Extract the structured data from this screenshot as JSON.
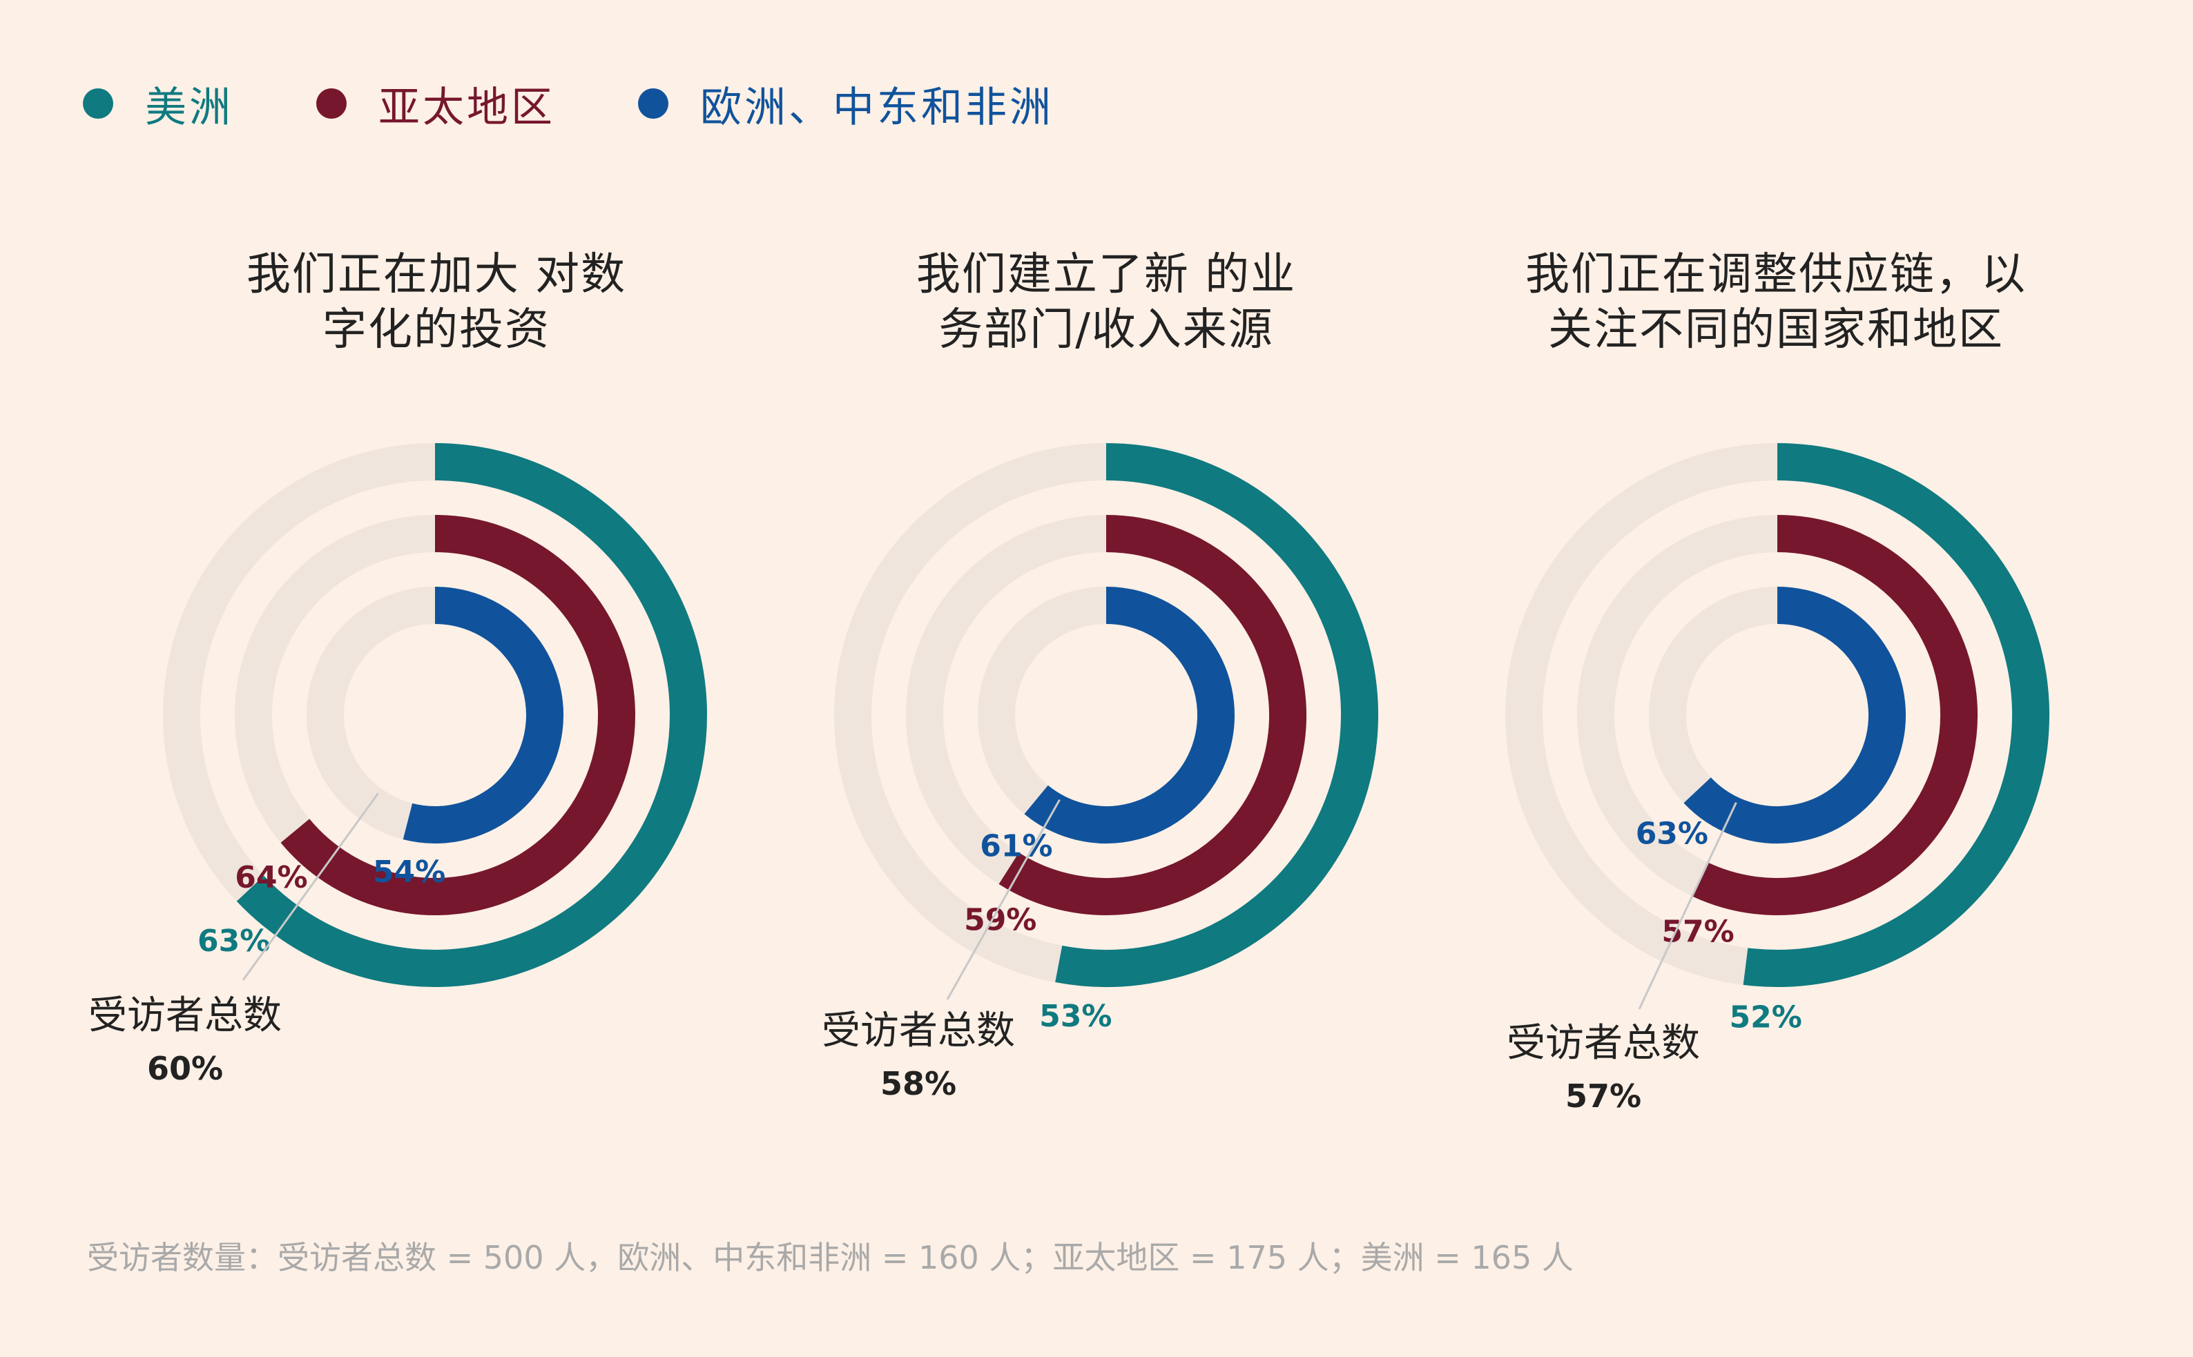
{
  "legend": [
    {
      "label": "美洲",
      "color": "#0f7a80"
    },
    {
      "label": "亚太地区",
      "color": "#76172e"
    },
    {
      "label": "欧洲、中东和非洲",
      "color": "#10539c"
    }
  ],
  "colors": {
    "americas": "#0f7a80",
    "apac": "#76172e",
    "emea": "#10539c",
    "track": "#efe5dc",
    "total_text": "#222222",
    "leader_line": "#c8c8c8"
  },
  "total_label": "受访者总数",
  "chart_data": [
    {
      "type": "radial-bar",
      "title": "我们正在加大 对数\n字化的投资",
      "series": [
        {
          "name": "美洲",
          "value": 63
        },
        {
          "name": "亚太地区",
          "value": 64
        },
        {
          "name": "欧洲、中东和非洲",
          "value": 54
        }
      ],
      "total": 60
    },
    {
      "type": "radial-bar",
      "title": "我们建立了新 的业\n务部门/收入来源",
      "series": [
        {
          "name": "美洲",
          "value": 53
        },
        {
          "name": "亚太地区",
          "value": 59
        },
        {
          "name": "欧洲、中东和非洲",
          "value": 61
        }
      ],
      "total": 58
    },
    {
      "type": "radial-bar",
      "title": "我们正在调整供应链，以\n关注不同的国家和地区",
      "series": [
        {
          "name": "美洲",
          "value": 52
        },
        {
          "name": "亚太地区",
          "value": 57
        },
        {
          "name": "欧洲、中东和非洲",
          "value": 63
        }
      ],
      "total": 57
    }
  ],
  "footnote": "受访者数量：受访者总数 = 500 人，欧洲、中东和非洲 = 160 人；亚太地区 = 175 人；美洲 = 165 人"
}
